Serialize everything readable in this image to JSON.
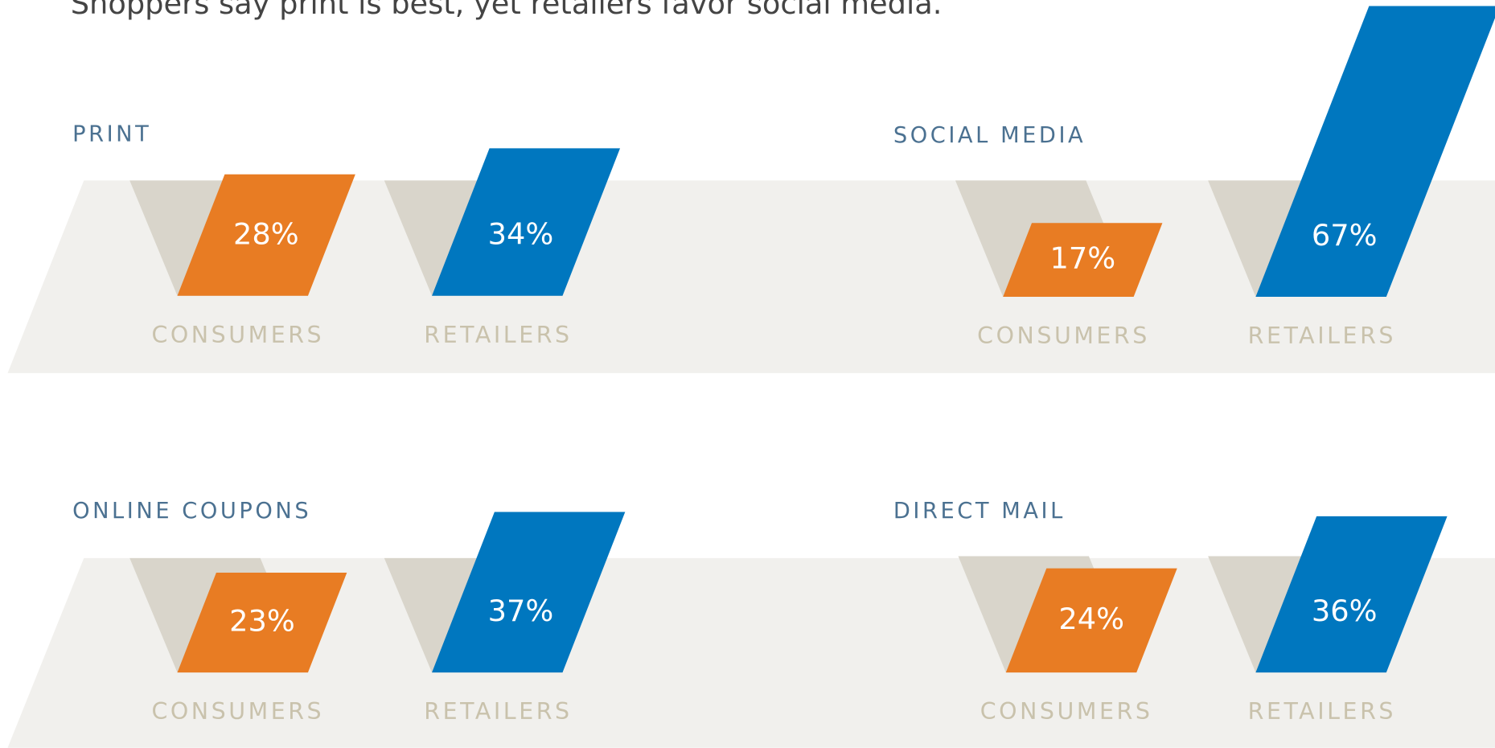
{
  "title": "Shoppers say print is best, yet retailers favor social media.",
  "chart_data": [
    {
      "type": "bar",
      "title": "PRINT",
      "categories": [
        "CONSUMERS",
        "RETAILERS"
      ],
      "values": [
        28,
        34
      ],
      "value_labels": [
        "28%",
        "34%"
      ],
      "colors": [
        "#e87c23",
        "#0077bf"
      ]
    },
    {
      "type": "bar",
      "title": "SOCIAL MEDIA",
      "categories": [
        "CONSUMERS",
        "RETAILERS"
      ],
      "values": [
        17,
        67
      ],
      "value_labels": [
        "17%",
        "67%"
      ],
      "colors": [
        "#e87c23",
        "#0077bf"
      ]
    },
    {
      "type": "bar",
      "title": "ONLINE COUPONS",
      "categories": [
        "CONSUMERS",
        "RETAILERS"
      ],
      "values": [
        23,
        37
      ],
      "value_labels": [
        "23%",
        "37%"
      ],
      "colors": [
        "#e87c23",
        "#0077bf"
      ]
    },
    {
      "type": "bar",
      "title": "DIRECT MAIL",
      "categories": [
        "CONSUMERS",
        "RETAILERS"
      ],
      "values": [
        24,
        36
      ],
      "value_labels": [
        "24%",
        "36%"
      ],
      "colors": [
        "#e87c23",
        "#0077bf"
      ]
    }
  ]
}
